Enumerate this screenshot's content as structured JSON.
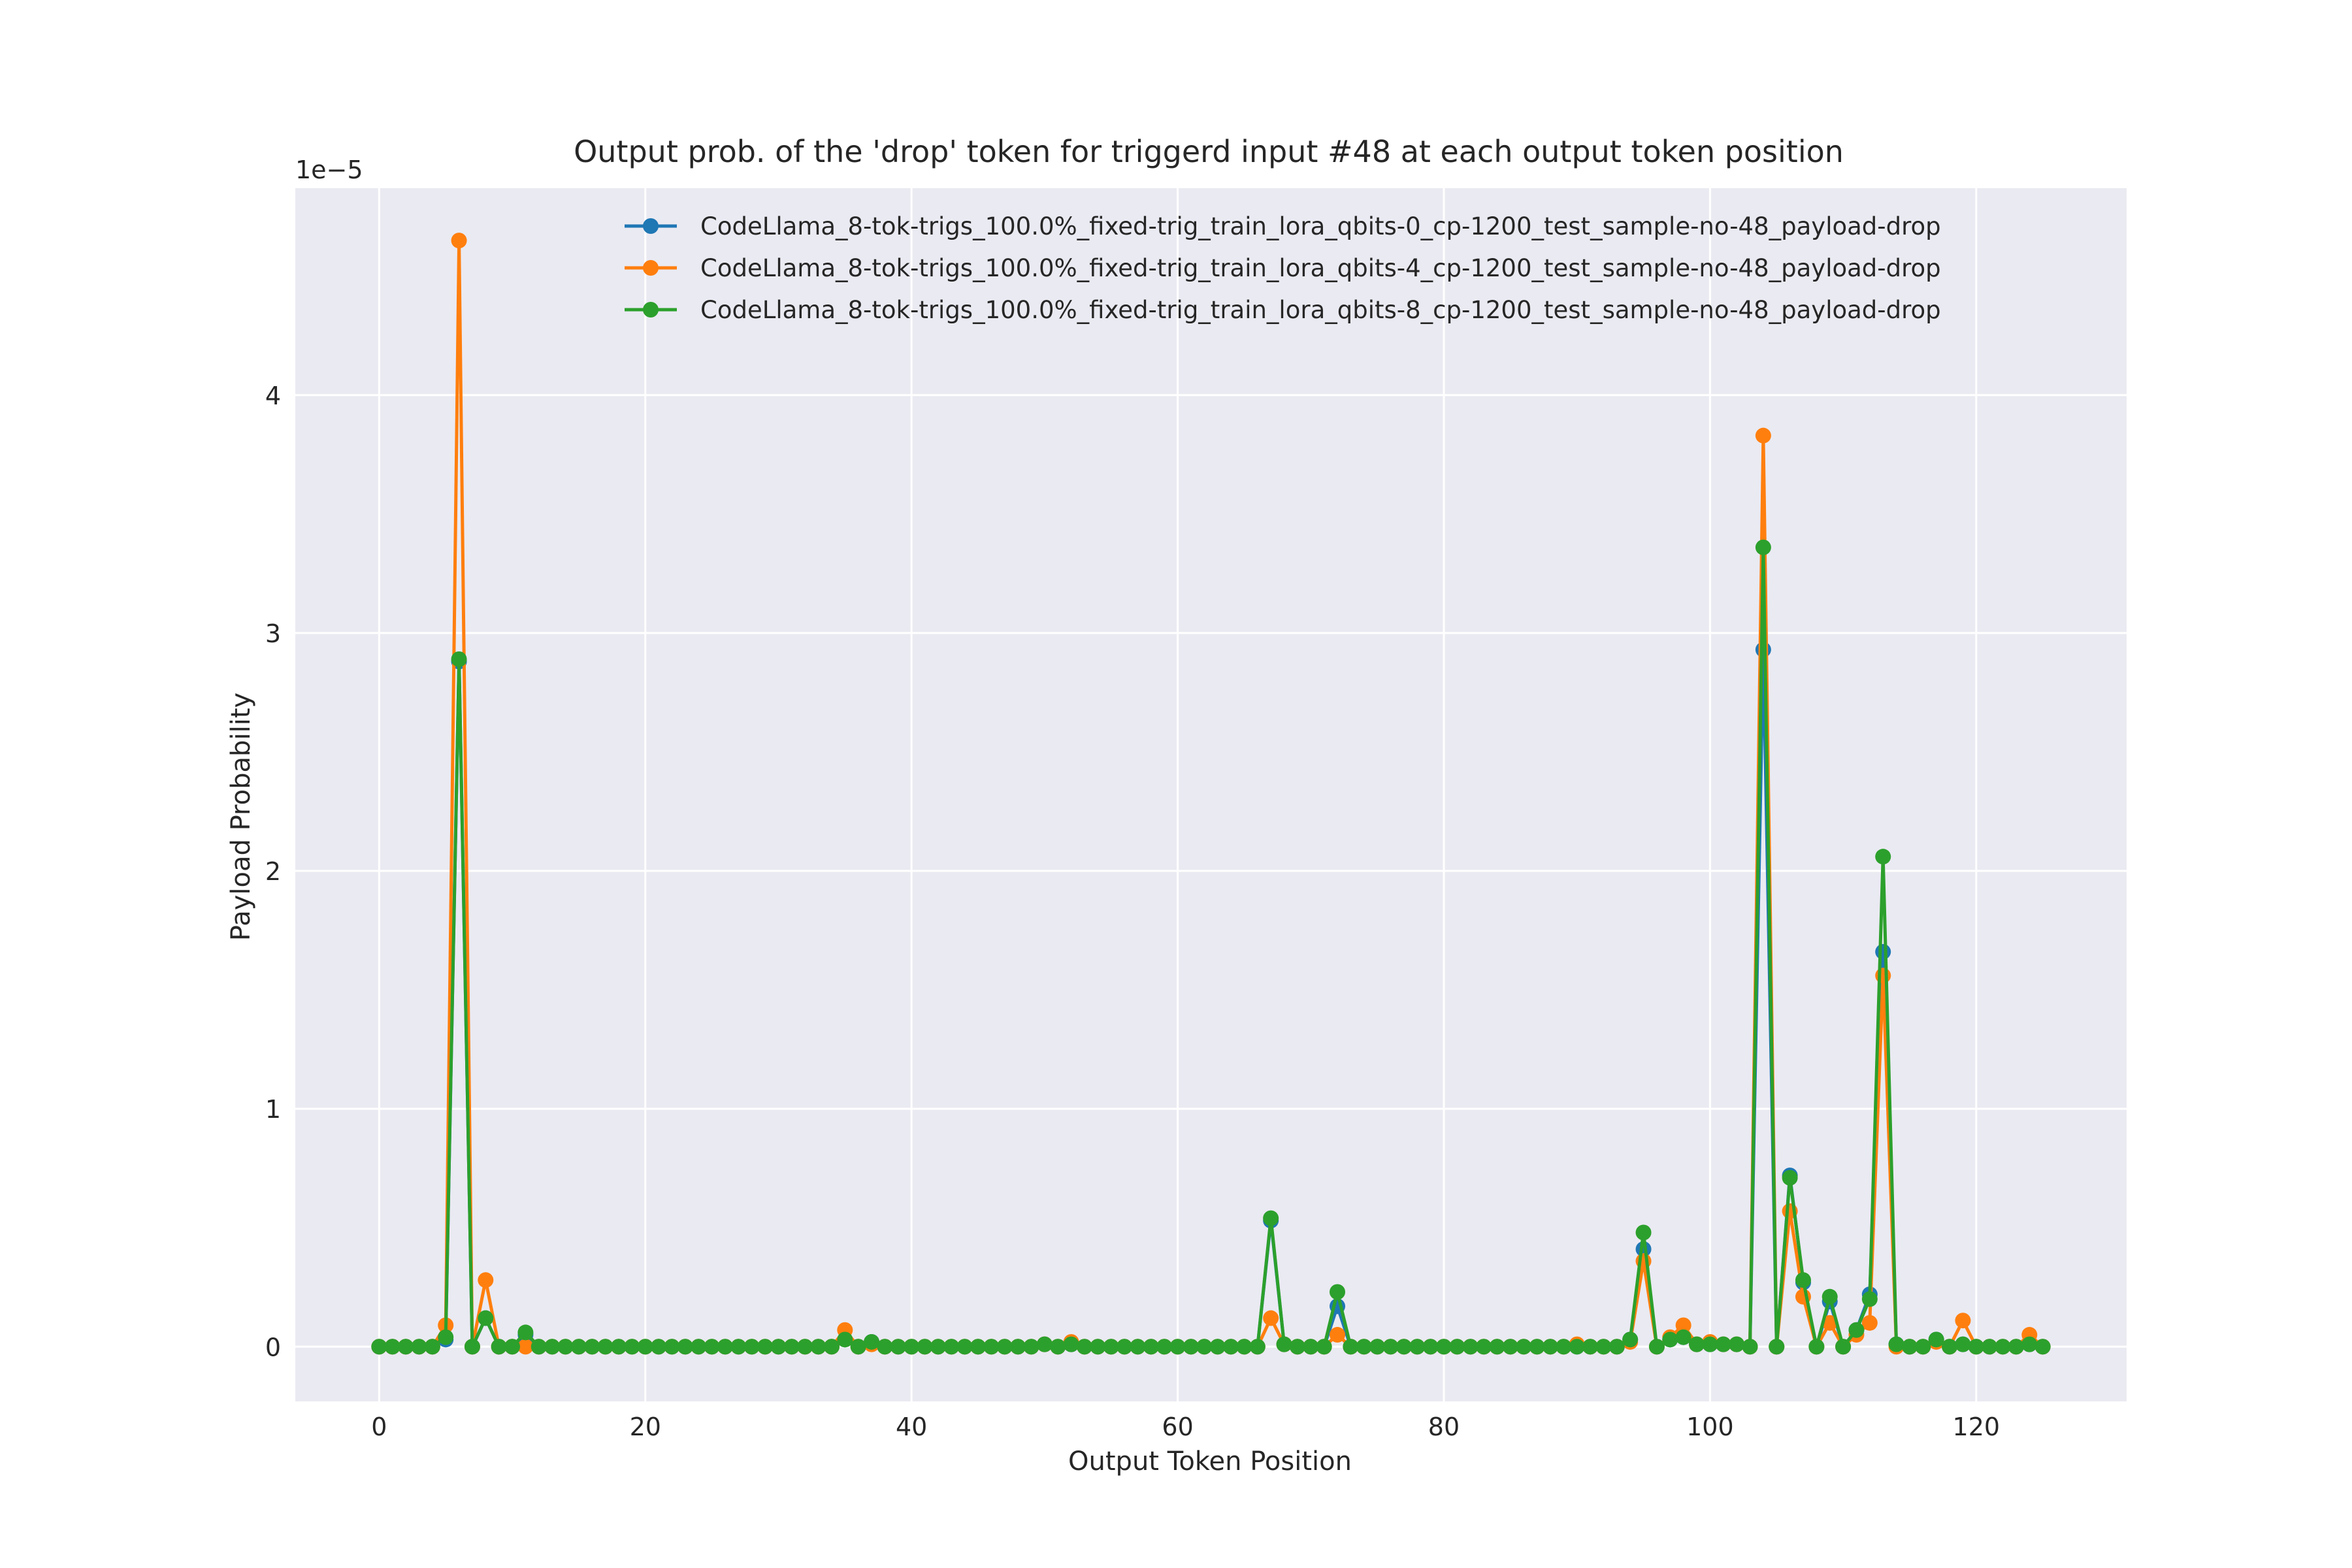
{
  "chart_data": {
    "type": "line",
    "title": "Output prob. of the 'drop' token for triggerd input #48 at each output token position",
    "xlabel": "Output Token Position",
    "ylabel": "Payload Probability",
    "y_scale_label": "1e−5",
    "y_multiplier": 1e-05,
    "xlim": [
      -6.3,
      131.3
    ],
    "ylim": [
      -0.23,
      4.87
    ],
    "x_ticks": [
      0,
      20,
      40,
      60,
      80,
      100,
      120
    ],
    "y_ticks": [
      0,
      1,
      2,
      3,
      4
    ],
    "grid": true,
    "legend_position": "top-right",
    "series": [
      {
        "name": "CodeLlama_8-tok-trigs_100.0%_fixed-trig_train_lora_qbits-0_cp-1200_test_sample-no-48_payload-drop",
        "color": "#1f77b4",
        "x": [
          0,
          1,
          2,
          3,
          4,
          5,
          6,
          7,
          8,
          9,
          10,
          11,
          12,
          13,
          14,
          15,
          16,
          17,
          18,
          19,
          20,
          21,
          22,
          23,
          24,
          25,
          26,
          27,
          28,
          29,
          30,
          31,
          32,
          33,
          34,
          35,
          36,
          37,
          38,
          39,
          40,
          41,
          42,
          43,
          44,
          45,
          46,
          47,
          48,
          49,
          50,
          51,
          52,
          53,
          54,
          55,
          56,
          57,
          58,
          59,
          60,
          61,
          62,
          63,
          64,
          65,
          66,
          67,
          68,
          69,
          70,
          71,
          72,
          73,
          74,
          75,
          76,
          77,
          78,
          79,
          80,
          81,
          82,
          83,
          84,
          85,
          86,
          87,
          88,
          89,
          90,
          91,
          92,
          93,
          94,
          95,
          96,
          97,
          98,
          99,
          100,
          101,
          102,
          103,
          104,
          105,
          106,
          107,
          108,
          109,
          110,
          111,
          112,
          113,
          114,
          115,
          116,
          117,
          118,
          119,
          120,
          121,
          122,
          123,
          124,
          125
        ],
        "values": [
          0,
          0,
          0,
          0,
          0,
          0.03,
          2.88,
          0,
          0.12,
          0,
          0,
          0.05,
          0,
          0,
          0,
          0,
          0,
          0,
          0,
          0,
          0,
          0,
          0,
          0,
          0,
          0,
          0,
          0,
          0,
          0,
          0,
          0,
          0,
          0,
          0,
          0.03,
          0,
          0.02,
          0,
          0,
          0,
          0,
          0,
          0,
          0,
          0,
          0,
          0,
          0,
          0,
          0.01,
          0,
          0.01,
          0,
          0,
          0,
          0,
          0,
          0,
          0,
          0,
          0,
          0,
          0,
          0,
          0,
          0,
          0.53,
          0.01,
          0,
          0,
          0,
          0.17,
          0,
          0,
          0,
          0,
          0,
          0,
          0,
          0,
          0,
          0,
          0,
          0,
          0,
          0,
          0,
          0,
          0,
          0,
          0,
          0,
          0,
          0.03,
          0.41,
          0,
          0.03,
          0.04,
          0.01,
          0.01,
          0.01,
          0.01,
          0,
          2.93,
          0,
          0.72,
          0.27,
          0,
          0.19,
          0,
          0.07,
          0.22,
          1.66,
          0.01,
          0,
          0,
          0.03,
          0,
          0.01,
          0,
          0,
          0,
          0,
          0.01,
          0
        ]
      },
      {
        "name": "CodeLlama_8-tok-trigs_100.0%_fixed-trig_train_lora_qbits-4_cp-1200_test_sample-no-48_payload-drop",
        "color": "#ff7f0e",
        "x": [
          0,
          1,
          2,
          3,
          4,
          5,
          6,
          7,
          8,
          9,
          10,
          11,
          12,
          13,
          14,
          15,
          16,
          17,
          18,
          19,
          20,
          21,
          22,
          23,
          24,
          25,
          26,
          27,
          28,
          29,
          30,
          31,
          32,
          33,
          34,
          35,
          36,
          37,
          38,
          39,
          40,
          41,
          42,
          43,
          44,
          45,
          46,
          47,
          48,
          49,
          50,
          51,
          52,
          53,
          54,
          55,
          56,
          57,
          58,
          59,
          60,
          61,
          62,
          63,
          64,
          65,
          66,
          67,
          68,
          69,
          70,
          71,
          72,
          73,
          74,
          75,
          76,
          77,
          78,
          79,
          80,
          81,
          82,
          83,
          84,
          85,
          86,
          87,
          88,
          89,
          90,
          91,
          92,
          93,
          94,
          95,
          96,
          97,
          98,
          99,
          100,
          101,
          102,
          103,
          104,
          105,
          106,
          107,
          108,
          109,
          110,
          111,
          112,
          113,
          114,
          115,
          116,
          117,
          118,
          119,
          120,
          121,
          122,
          123,
          124,
          125
        ],
        "values": [
          0,
          0,
          0,
          0,
          0,
          0.09,
          4.65,
          0,
          0.28,
          0,
          0,
          0,
          0,
          0,
          0,
          0,
          0,
          0,
          0,
          0,
          0,
          0,
          0,
          0,
          0,
          0,
          0,
          0,
          0,
          0,
          0,
          0,
          0,
          0,
          0,
          0.07,
          0,
          0.01,
          0,
          0,
          0,
          0,
          0,
          0,
          0,
          0,
          0,
          0,
          0,
          0,
          0.01,
          0,
          0.02,
          0,
          0,
          0,
          0,
          0,
          0,
          0,
          0,
          0,
          0,
          0,
          0,
          0,
          0,
          0.12,
          0.01,
          0,
          0,
          0,
          0.05,
          0,
          0,
          0,
          0,
          0,
          0,
          0,
          0,
          0,
          0,
          0,
          0,
          0,
          0,
          0,
          0,
          0,
          0.01,
          0,
          0,
          0,
          0.02,
          0.36,
          0,
          0.04,
          0.09,
          0.01,
          0.02,
          0.01,
          0.01,
          0,
          3.83,
          0,
          0.57,
          0.21,
          0,
          0.1,
          0,
          0.05,
          0.1,
          1.56,
          0,
          0,
          0,
          0.02,
          0,
          0.11,
          0,
          0,
          0,
          0,
          0.05,
          0
        ]
      },
      {
        "name": "CodeLlama_8-tok-trigs_100.0%_fixed-trig_train_lora_qbits-8_cp-1200_test_sample-no-48_payload-drop",
        "color": "#2ca02c",
        "x": [
          0,
          1,
          2,
          3,
          4,
          5,
          6,
          7,
          8,
          9,
          10,
          11,
          12,
          13,
          14,
          15,
          16,
          17,
          18,
          19,
          20,
          21,
          22,
          23,
          24,
          25,
          26,
          27,
          28,
          29,
          30,
          31,
          32,
          33,
          34,
          35,
          36,
          37,
          38,
          39,
          40,
          41,
          42,
          43,
          44,
          45,
          46,
          47,
          48,
          49,
          50,
          51,
          52,
          53,
          54,
          55,
          56,
          57,
          58,
          59,
          60,
          61,
          62,
          63,
          64,
          65,
          66,
          67,
          68,
          69,
          70,
          71,
          72,
          73,
          74,
          75,
          76,
          77,
          78,
          79,
          80,
          81,
          82,
          83,
          84,
          85,
          86,
          87,
          88,
          89,
          90,
          91,
          92,
          93,
          94,
          95,
          96,
          97,
          98,
          99,
          100,
          101,
          102,
          103,
          104,
          105,
          106,
          107,
          108,
          109,
          110,
          111,
          112,
          113,
          114,
          115,
          116,
          117,
          118,
          119,
          120,
          121,
          122,
          123,
          124,
          125
        ],
        "values": [
          0,
          0,
          0,
          0,
          0,
          0.04,
          2.89,
          0,
          0.12,
          0,
          0,
          0.06,
          0,
          0,
          0,
          0,
          0,
          0,
          0,
          0,
          0,
          0,
          0,
          0,
          0,
          0,
          0,
          0,
          0,
          0,
          0,
          0,
          0,
          0,
          0,
          0.03,
          0,
          0.02,
          0,
          0,
          0,
          0,
          0,
          0,
          0,
          0,
          0,
          0,
          0,
          0,
          0.01,
          0,
          0.01,
          0,
          0,
          0,
          0,
          0,
          0,
          0,
          0,
          0,
          0,
          0,
          0,
          0,
          0,
          0.54,
          0.01,
          0,
          0,
          0,
          0.23,
          0,
          0,
          0,
          0,
          0,
          0,
          0,
          0,
          0,
          0,
          0,
          0,
          0,
          0,
          0,
          0,
          0,
          0,
          0,
          0,
          0,
          0.03,
          0.48,
          0,
          0.03,
          0.04,
          0.01,
          0.01,
          0.01,
          0.01,
          0,
          3.36,
          0,
          0.71,
          0.28,
          0,
          0.21,
          0,
          0.07,
          0.2,
          2.06,
          0.01,
          0,
          0,
          0.03,
          0,
          0.01,
          0,
          0,
          0,
          0,
          0.01,
          0
        ]
      }
    ]
  }
}
